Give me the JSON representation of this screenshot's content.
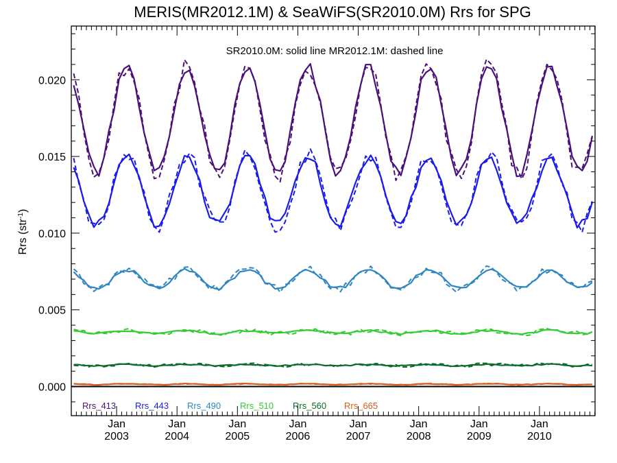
{
  "chart_data": {
    "type": "line",
    "title": "MERIS(MR2012.1M) & SeaWiFS(SR2010.0M)  Rrs for SPG",
    "annotation": "SR2010.0M: solid line   MR2012.1M: dashed line",
    "ylabel": "Rrs (str",
    "ylabel_sup": "-1",
    "ylabel_close": ")",
    "ylim": [
      -0.0019,
      0.0235
    ],
    "xlim": [
      2002.25,
      2010.92
    ],
    "ytick_values": [
      0.0,
      0.005,
      0.01,
      0.015,
      0.02
    ],
    "ytick_labels": [
      "0.000",
      "0.005",
      "0.010",
      "0.015",
      "0.020"
    ],
    "xtick_values": [
      2003,
      2004,
      2005,
      2006,
      2007,
      2008,
      2009,
      2010
    ],
    "xtick_month": "Jan",
    "xtick_years": [
      "2003",
      "2004",
      "2005",
      "2006",
      "2007",
      "2008",
      "2009",
      "2010"
    ],
    "zero_line": 0.0,
    "series": [
      {
        "name": "Rrs_413",
        "color": "#4a1079",
        "base": 0.0139,
        "amp": 0.0069,
        "nsol": 0.00035,
        "ndash": 0.0006
      },
      {
        "name": "Rrs_443",
        "color": "#1a1aee",
        "base": 0.01055,
        "amp": 0.0044,
        "nsol": 0.0003,
        "ndash": 0.0005
      },
      {
        "name": "Rrs_490",
        "color": "#2e86c1",
        "base": 0.0064,
        "amp": 0.0012,
        "nsol": 0.00012,
        "ndash": 0.00025
      },
      {
        "name": "Rrs_510",
        "color": "#33cc33",
        "base": 0.00345,
        "amp": 0.0002,
        "nsol": 6e-05,
        "ndash": 0.00015
      },
      {
        "name": "Rrs_560",
        "color": "#0b6b2a",
        "base": 0.00135,
        "amp": 0.0001,
        "nsol": 4e-05,
        "ndash": 0.0001
      },
      {
        "name": "Rrs_665",
        "color": "#d95b1a",
        "base": 0.00012,
        "amp": 6e-05,
        "nsol": 2e-05,
        "ndash": 3e-05
      }
    ]
  }
}
